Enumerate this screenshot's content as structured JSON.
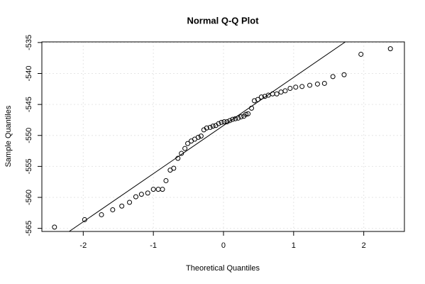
{
  "chart_data": {
    "type": "scatter",
    "title": "Normal Q-Q Plot",
    "x_label": "Theoretical Quantiles",
    "y_label": "Sample Quantiles",
    "x": [
      -2.41,
      -1.98,
      -1.74,
      -1.58,
      -1.45,
      -1.34,
      -1.25,
      -1.17,
      -1.08,
      -1.0,
      -0.93,
      -0.87,
      -0.82,
      -0.76,
      -0.71,
      -0.65,
      -0.6,
      -0.55,
      -0.51,
      -0.46,
      -0.41,
      -0.36,
      -0.32,
      -0.28,
      -0.24,
      -0.19,
      -0.15,
      -0.11,
      -0.07,
      -0.03,
      0.01,
      0.05,
      0.09,
      0.13,
      0.17,
      0.21,
      0.25,
      0.29,
      0.32,
      0.35,
      0.4,
      0.44,
      0.49,
      0.54,
      0.59,
      0.64,
      0.7,
      0.76,
      0.82,
      0.88,
      0.95,
      1.03,
      1.12,
      1.23,
      1.34,
      1.44,
      1.56,
      1.72,
      1.96,
      2.38
    ],
    "y": [
      -564.8,
      -563.6,
      -562.8,
      -562.0,
      -561.4,
      -560.8,
      -559.9,
      -559.5,
      -559.3,
      -558.7,
      -558.7,
      -558.7,
      -557.3,
      -555.6,
      -555.3,
      -553.7,
      -552.9,
      -552.1,
      -551.3,
      -550.9,
      -550.6,
      -550.3,
      -550.1,
      -549.1,
      -548.8,
      -548.7,
      -548.5,
      -548.4,
      -548.1,
      -547.9,
      -547.8,
      -547.8,
      -547.6,
      -547.4,
      -547.3,
      -547.2,
      -547.0,
      -546.9,
      -546.6,
      -546.5,
      -545.6,
      -544.4,
      -544.2,
      -543.8,
      -543.7,
      -543.5,
      -543.3,
      -543.3,
      -543.0,
      -542.8,
      -542.4,
      -542.2,
      -542.1,
      -541.9,
      -541.7,
      -541.6,
      -540.5,
      -540.2,
      -536.9,
      -536.0
    ],
    "reference_line": {
      "intercept": -548.4,
      "slope": 7.77
    },
    "color": "#000000",
    "xlim": [
      -2.59,
      2.58
    ],
    "ylim": [
      -565.5,
      -534.9
    ],
    "xticks": [
      -2,
      -1,
      0,
      1,
      2
    ],
    "yticks": [
      -535,
      -540,
      -545,
      -550,
      -555,
      -560,
      -565
    ],
    "grid": true
  }
}
